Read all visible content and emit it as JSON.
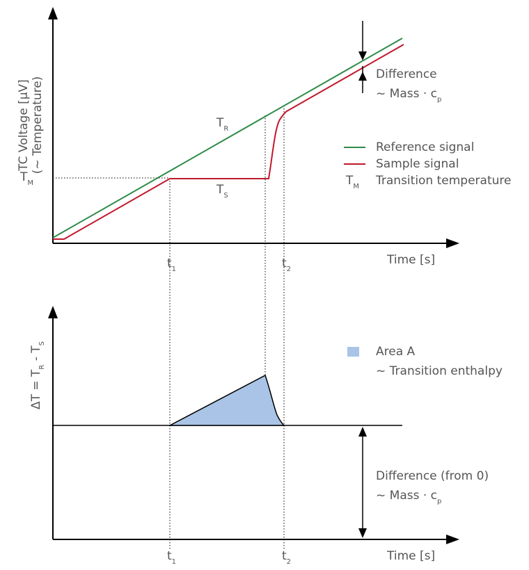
{
  "colors": {
    "reference": "#2e8b47",
    "sample": "#c0182b",
    "area_fill": "#a9c4e6",
    "axis": "#000000",
    "text": "#555555"
  },
  "top_plot": {
    "y_axis_label_line1": "TC Voltage [µV]",
    "y_axis_label_line2": "(~ Temperature)",
    "x_axis_label": "Time [s]",
    "tm_label_main": "T",
    "tm_label_sub": "M",
    "tr_label_main": "T",
    "tr_label_sub": "R",
    "ts_label_main": "T",
    "ts_label_sub": "S",
    "t1_main": "t",
    "t1_sub": "1",
    "t2_main": "t",
    "t2_sub": "2",
    "difference_line1": "Difference",
    "difference_line2_main": "~ Mass · c",
    "difference_line2_sub": "p",
    "legend": {
      "reference": "Reference signal",
      "sample": "Sample signal",
      "tm_symbol_main": "T",
      "tm_symbol_sub": "M",
      "transition": "Transition temperature"
    }
  },
  "bottom_plot": {
    "y_label_delta": "ΔT = T",
    "y_label_sub_r": "R",
    "y_label_minus": " - T",
    "y_label_sub_s": "S",
    "x_axis_label": "Time [s]",
    "t1_main": "t",
    "t1_sub": "1",
    "t2_main": "t",
    "t2_sub": "2",
    "area_line1": "Area A",
    "area_line2": "~ Transition enthalpy",
    "difference_line1": "Difference (from 0)",
    "difference_line2_main": "~ Mass · c",
    "difference_line2_sub": "p"
  }
}
